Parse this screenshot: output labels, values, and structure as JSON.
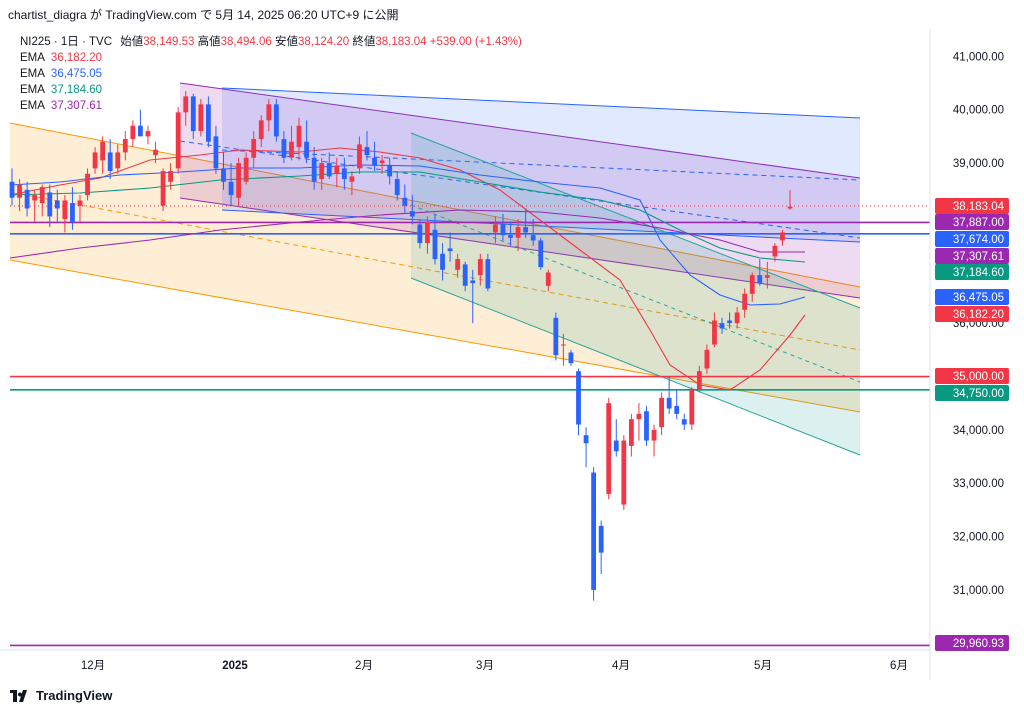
{
  "header": {
    "attribution": "chartist_diagra が TradingView.com で 5月 14, 2025 06:20 UTC+9 に公開"
  },
  "legend": {
    "symbol": "NI225 · 1日 · TVC",
    "open_label": "始値",
    "open": "38,149.53",
    "high_label": "高値",
    "high": "38,494.06",
    "low_label": "安値",
    "low": "38,124.20",
    "close_label": "終値",
    "close": "38,183.04",
    "change": "+539.00 (+1.43%)",
    "emas": [
      {
        "label": "EMA",
        "value": "36,182.20",
        "color": "#f23645"
      },
      {
        "label": "EMA",
        "value": "36,475.05",
        "color": "#2962ff"
      },
      {
        "label": "EMA",
        "value": "37,184.60",
        "color": "#089981"
      },
      {
        "label": "EMA",
        "value": "37,307.61",
        "color": "#9c27b0"
      }
    ]
  },
  "footer": {
    "brand": "TradingView"
  },
  "chart_data": {
    "type": "candlestick",
    "y_range": [
      29700,
      41500
    ],
    "y_ticks": [
      {
        "value": 41000,
        "label": "41,000.00"
      },
      {
        "value": 40000,
        "label": "40,000.00"
      },
      {
        "value": 39000,
        "label": "39,000.00"
      },
      {
        "value": 36000,
        "label": "36,000.00"
      },
      {
        "value": 34000,
        "label": "34,000.00"
      },
      {
        "value": 33000,
        "label": "33,000.00"
      },
      {
        "value": 32000,
        "label": "32,000.00"
      },
      {
        "value": 31000,
        "label": "31,000.00"
      }
    ],
    "x_ticks": [
      {
        "label": "12月",
        "bold": false
      },
      {
        "label": "2025",
        "bold": true
      },
      {
        "label": "2月",
        "bold": false
      },
      {
        "label": "3月",
        "bold": false
      },
      {
        "label": "4月",
        "bold": false
      },
      {
        "label": "5月",
        "bold": false
      },
      {
        "label": "6月",
        "bold": false
      }
    ],
    "price_tags": [
      {
        "value": 38183.04,
        "label": "38,183.04",
        "color": "#f23645"
      },
      {
        "value": 37887.0,
        "label": "37,887.00",
        "color": "#9c27b0"
      },
      {
        "value": 37674.0,
        "label": "37,674.00",
        "color": "#2962ff"
      },
      {
        "value": 37307.61,
        "label": "37,307.61",
        "color": "#9c27b0"
      },
      {
        "value": 37184.6,
        "label": "37,184.60",
        "color": "#089981"
      },
      {
        "value": 36475.05,
        "label": "36,475.05",
        "color": "#2962ff"
      },
      {
        "value": 36182.2,
        "label": "36,182.20",
        "color": "#f23645"
      },
      {
        "value": 35000.0,
        "label": "35,000.00",
        "color": "#f23645"
      },
      {
        "value": 34750.0,
        "label": "34,750.00",
        "color": "#089981"
      },
      {
        "value": 29960.93,
        "label": "29,960.93",
        "color": "#9c27b0"
      }
    ],
    "horizontal_levels": [
      {
        "value": 37887.0,
        "color": "#9c27b0"
      },
      {
        "value": 37674.0,
        "color": "#2962ff"
      },
      {
        "value": 35000.0,
        "color": "#f23645"
      },
      {
        "value": 34750.0,
        "color": "#089981"
      },
      {
        "value": 29960.93,
        "color": "#9c27b0"
      }
    ],
    "candles": [
      [
        38650,
        38900,
        38200,
        38350
      ],
      [
        38350,
        38700,
        38100,
        38600
      ],
      [
        38500,
        38650,
        38000,
        38150
      ],
      [
        38300,
        38500,
        37900,
        38400
      ],
      [
        38250,
        38600,
        38000,
        38550
      ],
      [
        38450,
        38600,
        37800,
        38000
      ],
      [
        38300,
        38500,
        37900,
        38150
      ],
      [
        37950,
        38400,
        37700,
        38300
      ],
      [
        38250,
        38550,
        37750,
        37900
      ],
      [
        38200,
        38400,
        37900,
        38300
      ],
      [
        38400,
        38900,
        38300,
        38800
      ],
      [
        38900,
        39300,
        38800,
        39200
      ],
      [
        39050,
        39500,
        38800,
        39400
      ],
      [
        39200,
        39450,
        38700,
        38850
      ],
      [
        38900,
        39350,
        38800,
        39200
      ],
      [
        39200,
        39600,
        39050,
        39450
      ],
      [
        39450,
        39800,
        39300,
        39700
      ],
      [
        39700,
        40000,
        39550,
        39500
      ],
      [
        39500,
        39700,
        39350,
        39600
      ],
      [
        39150,
        39400,
        39000,
        39250
      ],
      [
        38200,
        38900,
        38100,
        38850
      ],
      [
        38650,
        39000,
        38500,
        38850
      ],
      [
        38900,
        40050,
        38800,
        39950
      ],
      [
        39950,
        40350,
        39700,
        40250
      ],
      [
        40250,
        40300,
        39450,
        39600
      ],
      [
        39600,
        40200,
        39500,
        40100
      ],
      [
        40100,
        40250,
        39300,
        39400
      ],
      [
        39500,
        39700,
        38800,
        38900
      ],
      [
        38900,
        39200,
        38500,
        38650
      ],
      [
        38650,
        39000,
        38200,
        38400
      ],
      [
        38350,
        39100,
        38200,
        39000
      ],
      [
        38650,
        39200,
        38600,
        39100
      ],
      [
        39100,
        39600,
        38900,
        39450
      ],
      [
        39450,
        39900,
        39300,
        39800
      ],
      [
        39800,
        40200,
        39600,
        40100
      ],
      [
        40100,
        40200,
        39400,
        39500
      ],
      [
        39450,
        39600,
        39000,
        39100
      ],
      [
        39100,
        39700,
        39050,
        39400
      ],
      [
        39300,
        39850,
        39050,
        39700
      ],
      [
        39400,
        39800,
        39000,
        39100
      ],
      [
        39100,
        39300,
        38500,
        38650
      ],
      [
        38700,
        39100,
        38500,
        39000
      ],
      [
        39000,
        39200,
        38700,
        38750
      ],
      [
        38800,
        39100,
        38550,
        38950
      ],
      [
        38900,
        39100,
        38500,
        38700
      ],
      [
        38650,
        38850,
        38400,
        38750
      ],
      [
        38900,
        39500,
        38800,
        39350
      ],
      [
        39300,
        39600,
        39050,
        39150
      ],
      [
        39100,
        39400,
        38850,
        38950
      ],
      [
        39000,
        39150,
        38800,
        39050
      ],
      [
        38950,
        39100,
        38600,
        38750
      ],
      [
        38700,
        38850,
        38300,
        38400
      ],
      [
        38350,
        38600,
        38050,
        38200
      ],
      [
        38100,
        38400,
        37850,
        38000
      ],
      [
        37850,
        37950,
        37400,
        37500
      ],
      [
        37500,
        38000,
        37300,
        37900
      ],
      [
        37750,
        38050,
        37100,
        37200
      ],
      [
        37300,
        37500,
        36800,
        37000
      ],
      [
        37400,
        37700,
        37150,
        37350
      ],
      [
        37000,
        37300,
        36850,
        37200
      ],
      [
        37100,
        37150,
        36600,
        36700
      ],
      [
        36800,
        37000,
        36000,
        36750
      ],
      [
        36900,
        37300,
        36700,
        37200
      ],
      [
        37200,
        37300,
        36600,
        36650
      ],
      [
        37700,
        38000,
        37500,
        37850
      ],
      [
        37850,
        38050,
        37550,
        37650
      ],
      [
        37650,
        37900,
        37450,
        37600
      ],
      [
        37600,
        37950,
        37350,
        37800
      ],
      [
        37800,
        38150,
        37600,
        37700
      ],
      [
        37650,
        37950,
        37450,
        37550
      ],
      [
        37550,
        37600,
        37000,
        37050
      ],
      [
        36700,
        37000,
        36600,
        36950
      ],
      [
        36100,
        36200,
        35300,
        35400
      ],
      [
        35600,
        35800,
        35200,
        35600
      ],
      [
        35450,
        35500,
        35200,
        35250
      ],
      [
        35100,
        35150,
        33900,
        34100
      ],
      [
        33900,
        34050,
        33300,
        33750
      ],
      [
        33200,
        33300,
        30800,
        31000
      ],
      [
        32200,
        32300,
        31300,
        31700
      ],
      [
        32800,
        34600,
        32700,
        34500
      ],
      [
        33800,
        34200,
        33500,
        33600
      ],
      [
        32600,
        33900,
        32500,
        33800
      ],
      [
        33700,
        34300,
        33500,
        34200
      ],
      [
        34200,
        34500,
        33800,
        34300
      ],
      [
        34350,
        34450,
        33700,
        33800
      ],
      [
        33800,
        34100,
        33500,
        34000
      ],
      [
        34050,
        34700,
        33900,
        34600
      ],
      [
        34600,
        35000,
        34300,
        34400
      ],
      [
        34450,
        34750,
        34200,
        34300
      ],
      [
        34200,
        34300,
        34000,
        34100
      ],
      [
        34100,
        34800,
        34000,
        34750
      ],
      [
        34750,
        35200,
        34700,
        35100
      ],
      [
        35150,
        35600,
        35050,
        35500
      ],
      [
        35600,
        36200,
        35550,
        36050
      ],
      [
        36000,
        36100,
        35800,
        35900
      ],
      [
        36050,
        36200,
        35900,
        36000
      ],
      [
        36000,
        36300,
        35900,
        36200
      ],
      [
        36250,
        36650,
        36100,
        36550
      ],
      [
        36550,
        36950,
        36400,
        36900
      ],
      [
        36900,
        37200,
        36700,
        36750
      ],
      [
        36850,
        37150,
        36650,
        36900
      ],
      [
        37250,
        37500,
        37150,
        37450
      ],
      [
        37550,
        37750,
        37450,
        37700
      ],
      [
        38149.53,
        38494.06,
        38124.2,
        38183.04
      ]
    ]
  }
}
